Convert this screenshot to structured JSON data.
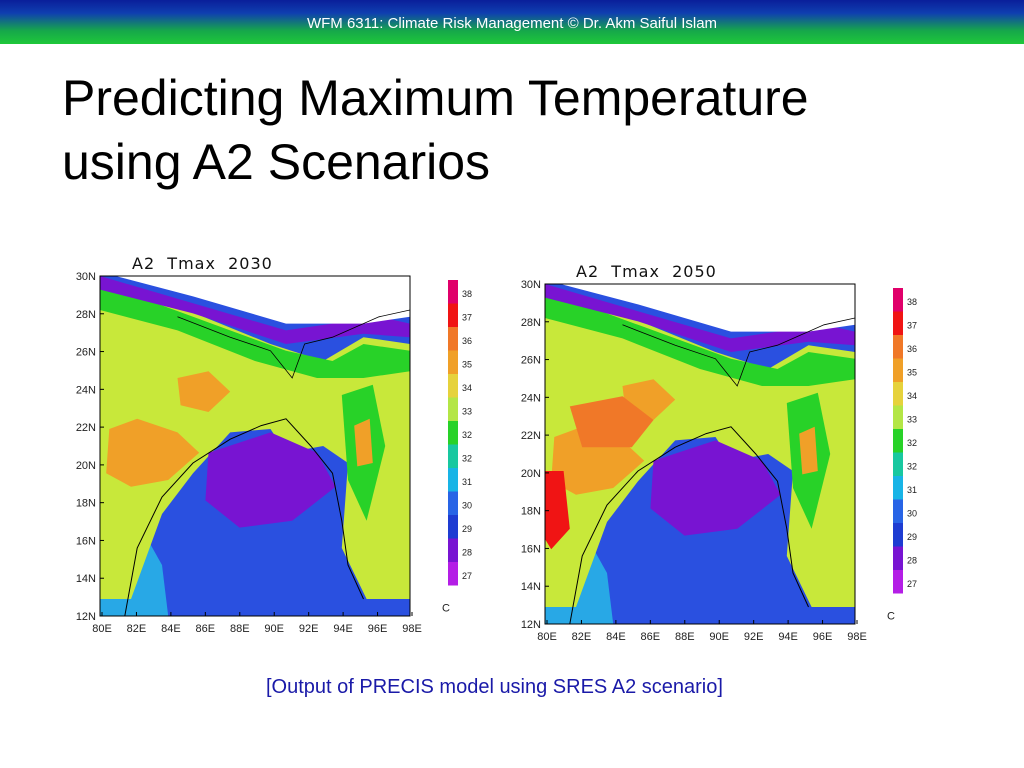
{
  "header": {
    "text": "WFM 6311: Climate Risk Management © Dr. Akm Saiful Islam"
  },
  "slide": {
    "title_line1": "Predicting Maximum Temperature",
    "title_line2": "using A2 Scenarios"
  },
  "maps": [
    {
      "title": "A2  Tmax  2030",
      "lat_labels": [
        "30N",
        "28N",
        "26N",
        "24N",
        "22N",
        "20N",
        "18N",
        "16N",
        "14N",
        "12N"
      ],
      "lon_labels": [
        "80E",
        "82E",
        "84E",
        "86E",
        "88E",
        "90E",
        "92E",
        "94E",
        "96E",
        "98E"
      ],
      "colorbar": {
        "labels": [
          "38",
          "37",
          "36",
          "35",
          "34",
          "33",
          "32",
          "32",
          "31",
          "30",
          "29",
          "28",
          "27"
        ],
        "colors": [
          "#e0006a",
          "#f01414",
          "#f07828",
          "#f0a028",
          "#e6d23c",
          "#b4e646",
          "#28d228",
          "#18c8a0",
          "#18b4e6",
          "#2864e6",
          "#1e3cd2",
          "#7814d2",
          "#b41ee6"
        ],
        "unit": "C"
      }
    },
    {
      "title": "A2  Tmax  2050",
      "lat_labels": [
        "30N",
        "28N",
        "26N",
        "24N",
        "22N",
        "20N",
        "18N",
        "16N",
        "14N",
        "12N"
      ],
      "lon_labels": [
        "80E",
        "82E",
        "84E",
        "86E",
        "88E",
        "90E",
        "92E",
        "94E",
        "96E",
        "98E"
      ],
      "colorbar": {
        "labels": [
          "38",
          "37",
          "36",
          "35",
          "34",
          "33",
          "32",
          "32",
          "31",
          "30",
          "29",
          "28",
          "27"
        ],
        "colors": [
          "#e0006a",
          "#f01414",
          "#f07828",
          "#f0a028",
          "#e6d23c",
          "#b4e646",
          "#28d228",
          "#18c8a0",
          "#18b4e6",
          "#2864e6",
          "#1e3cd2",
          "#7814d2",
          "#b41ee6"
        ],
        "unit": "C"
      }
    }
  ],
  "caption": "[Output of PRECIS model using SRES A2 scenario]"
}
